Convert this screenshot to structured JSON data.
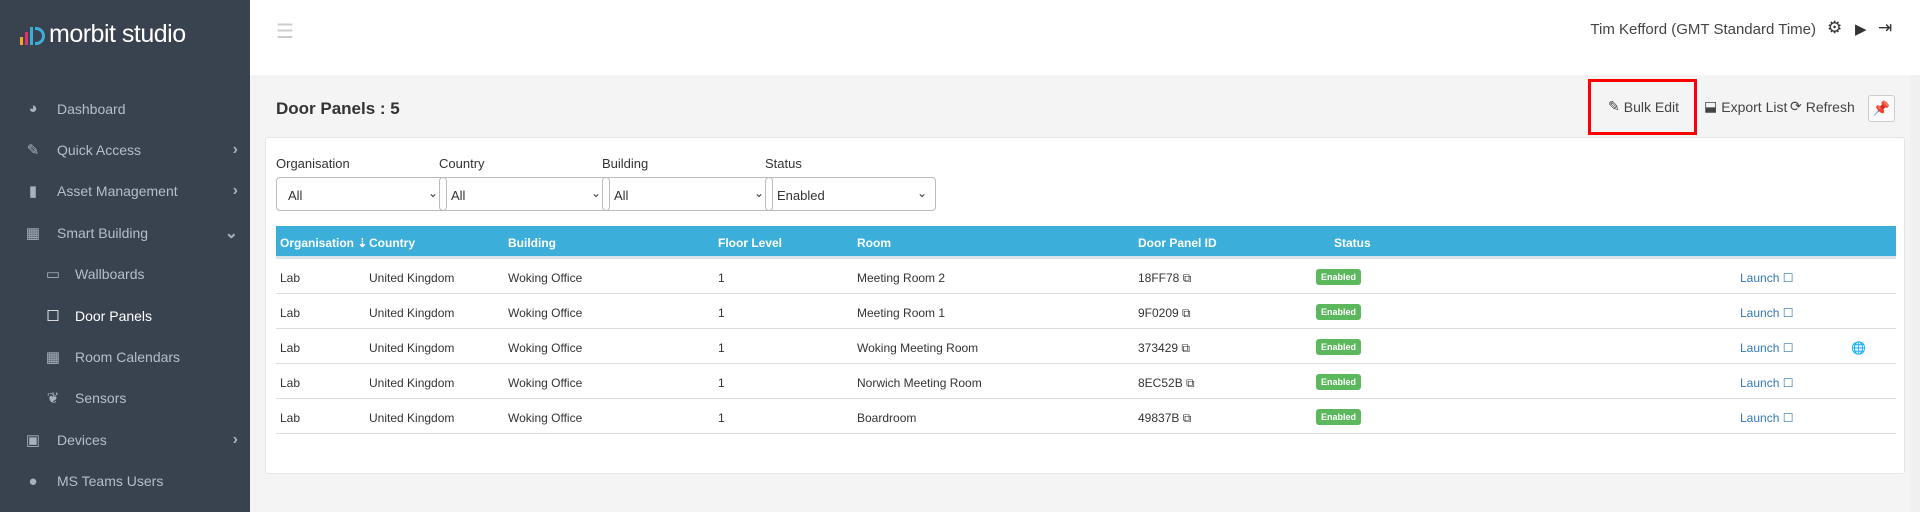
{
  "brand": {
    "name": "morbit studio",
    "colors": [
      "#f5a623",
      "#e0336d",
      "#3baed9"
    ]
  },
  "sidebar": {
    "items": [
      {
        "label": "Dashboard",
        "icon": "tachometer-icon",
        "chevron": true
      },
      {
        "label": "Quick Access",
        "icon": "pin-icon",
        "chevron": "right"
      },
      {
        "label": "Asset Management",
        "icon": "book-icon",
        "chevron": "right"
      },
      {
        "label": "Smart Building",
        "icon": "building-icon",
        "chevron": "down"
      },
      {
        "label": "Wallboards",
        "icon": "monitor-icon",
        "sub": true
      },
      {
        "label": "Door Panels",
        "icon": "square-icon",
        "sub": true,
        "active": true
      },
      {
        "label": "Room Calendars",
        "icon": "calendar-icon",
        "sub": true
      },
      {
        "label": "Sensors",
        "icon": "leaf-icon",
        "sub": true
      },
      {
        "label": "Devices",
        "icon": "chip-icon",
        "chevron": "right"
      },
      {
        "label": "MS Teams Users",
        "icon": "user-icon"
      }
    ]
  },
  "topbar": {
    "user": "Tim Kefford (GMT Standard Time)"
  },
  "page": {
    "title": "Door Panels : 5",
    "actions": {
      "bulk_edit": "Bulk Edit",
      "export": "Export List",
      "refresh": "Refresh"
    }
  },
  "filters": [
    {
      "label": "Organisation",
      "value": "All"
    },
    {
      "label": "Country",
      "value": "All"
    },
    {
      "label": "Building",
      "value": "All"
    },
    {
      "label": "Status",
      "value": "Enabled"
    }
  ],
  "table": {
    "headers": [
      "Organisation",
      "Country",
      "Building",
      "Floor Level",
      "Room",
      "Door Panel ID",
      "Status"
    ],
    "rows": [
      {
        "org": "Lab",
        "country": "United Kingdom",
        "building": "Woking Office",
        "floor": "1",
        "room": "Meeting Room 2",
        "id": "18FF78",
        "status": "Enabled",
        "launch": "Launch",
        "globe": false
      },
      {
        "org": "Lab",
        "country": "United Kingdom",
        "building": "Woking Office",
        "floor": "1",
        "room": "Meeting Room 1",
        "id": "9F0209",
        "status": "Enabled",
        "launch": "Launch",
        "globe": false
      },
      {
        "org": "Lab",
        "country": "United Kingdom",
        "building": "Woking Office",
        "floor": "1",
        "room": "Woking Meeting Room",
        "id": "373429",
        "status": "Enabled",
        "launch": "Launch",
        "globe": true
      },
      {
        "org": "Lab",
        "country": "United Kingdom",
        "building": "Woking Office",
        "floor": "1",
        "room": "Norwich Meeting Room",
        "id": "8EC52B",
        "status": "Enabled",
        "launch": "Launch",
        "globe": false
      },
      {
        "org": "Lab",
        "country": "United Kingdom",
        "building": "Woking Office",
        "floor": "1",
        "room": "Boardroom",
        "id": "49837B",
        "status": "Enabled",
        "launch": "Launch",
        "globe": false
      }
    ]
  }
}
